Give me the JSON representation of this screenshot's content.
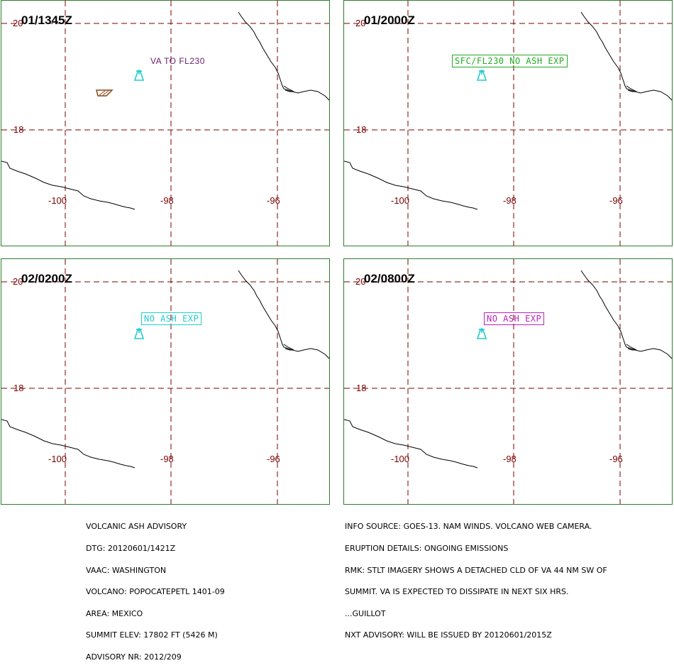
{
  "panels": [
    {
      "time": "01/1345Z",
      "label": "VA TO FL230"
    },
    {
      "time": "01/2000Z",
      "label": "SFC/FL230 NO ASH EXP"
    },
    {
      "time": "02/0200Z",
      "label": "NO ASH EXP"
    },
    {
      "time": "02/0800Z",
      "label": "NO ASH EXP"
    }
  ],
  "grid_labels": {
    "lat_20": "20",
    "lat_18": "18",
    "lon_100": "-100",
    "lon_98": "-98",
    "lon_96": "-96"
  },
  "colors": {
    "grid": "#7a0000",
    "coast": "#000000",
    "volcano": "#22cccc",
    "ash_polygon": "#8b4513",
    "label_va": "#6a1b6a",
    "label_sfc": "#22aa22",
    "label_cyan": "#22cccc",
    "label_magenta": "#bb22bb",
    "panel_border": "#2e7d2e"
  },
  "icons": {
    "volcano": "volcano-icon"
  },
  "advisory_left": [
    "VOLCANIC ASH ADVISORY",
    "DTG: 20120601/1421Z",
    "VAAC: WASHINGTON",
    "VOLCANO: POPOCATEPETL 1401-09",
    "AREA: MEXICO",
    "SUMMIT ELEV: 17802 FT (5426 M)",
    "ADVISORY NR: 2012/209"
  ],
  "advisory_right": [
    "INFO SOURCE: GOES-13. NAM WINDS. VOLCANO WEB CAMERA.",
    "ERUPTION DETAILS: ONGOING EMISSIONS",
    "RMK: STLT IMAGERY SHOWS A DETACHED CLD OF VA 44 NM SW OF",
    "SUMMIT. VA IS EXPECTED TO DISSIPATE IN NEXT SIX HRS.",
    "...GUILLOT",
    "NXT ADVISORY: WILL BE ISSUED BY 20120601/2015Z"
  ]
}
